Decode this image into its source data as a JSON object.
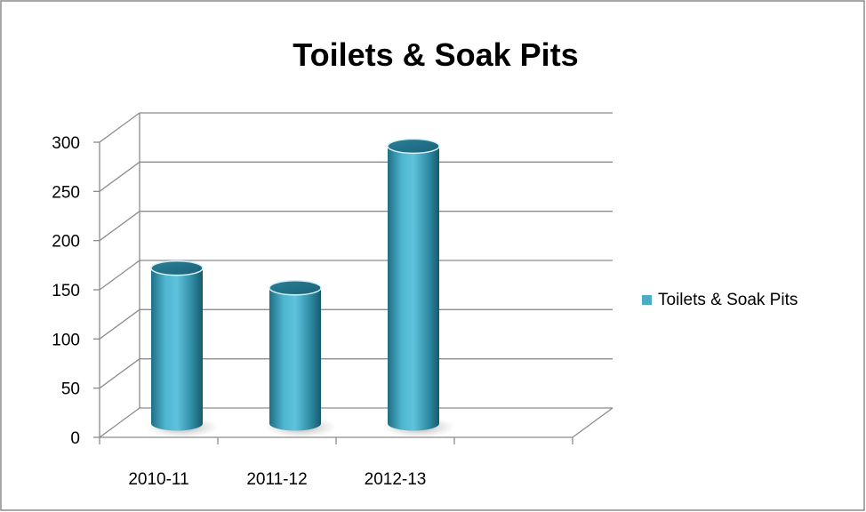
{
  "chart_data": {
    "type": "bar",
    "title": "Toilets & Soak Pits",
    "categories": [
      "2010-11",
      "2011-12",
      "2012-13"
    ],
    "series": [
      {
        "name": "Toilets & Soak Pits",
        "values": [
          158,
          138,
          282
        ],
        "color": "#4bacc6"
      }
    ],
    "y_ticks": [
      0,
      50,
      100,
      150,
      200,
      250,
      300
    ],
    "ylim": [
      0,
      300
    ],
    "grid": true,
    "legend_position": "right",
    "style": "3d-cylinder"
  }
}
